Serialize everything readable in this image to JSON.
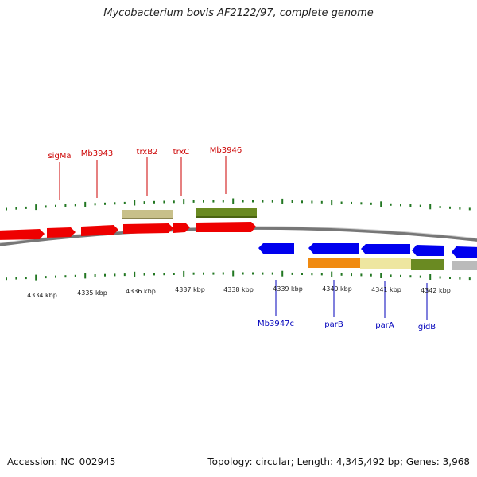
{
  "title": "Mycobacterium bovis AF2122/97, complete genome",
  "footer": {
    "accession": "Accession: NC_002945",
    "summary": "Topology: circular; Length: 4,345,492 bp; Genes: 3,968"
  },
  "colors": {
    "forward_strand": "#ee0000",
    "reverse_strand": "#0000ee",
    "forward_label": "#cc0000",
    "reverse_label": "#0000bb",
    "tick": "#227722",
    "backbone": "#888888",
    "khaki": "#c8c08a",
    "olive": "#6a8a22",
    "orange": "#f08a10",
    "pale_yellow": "#eee6a0",
    "grey": "#bbbbbb"
  },
  "kbp_labels": [
    "4334 kbp",
    "4335 kbp",
    "4336 kbp",
    "4337 kbp",
    "4338 kbp",
    "4339 kbp",
    "4340 kbp",
    "4341 kbp",
    "4342 kbp"
  ],
  "forward_labels": [
    "sigMa",
    "Mb3943",
    "trxB2",
    "trxC",
    "Mb3946"
  ],
  "reverse_labels": [
    "Mb3947c",
    "parB",
    "parA",
    "gidB"
  ]
}
